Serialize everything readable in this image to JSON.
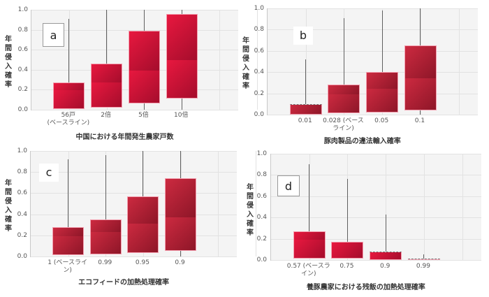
{
  "panels": [
    {
      "id": "a",
      "tag": "a",
      "ylabel": "年間侵入確率",
      "xtitle": "中国における年間発生農家戸数",
      "yticks": [
        "1.0",
        "0.8",
        "0.6",
        "0.4",
        "0.2",
        "0.0"
      ],
      "xticks": [
        "56戸\n(ベースライン)",
        "2倍",
        "5倍",
        "10倍"
      ]
    },
    {
      "id": "b",
      "tag": "b",
      "ylabel": "年間侵入確率",
      "xtitle": "豚肉製品の違法輸入確率",
      "yticks": [
        "1.0",
        "0.8",
        "0.6",
        "0.4",
        "0.2",
        "0.0"
      ],
      "xticks": [
        "0.01",
        "0.028 (ベース\nライン)",
        "0.05",
        "0.1"
      ]
    },
    {
      "id": "c",
      "tag": "c",
      "ylabel": "年間侵入確率",
      "xtitle": "エコフィードの加熱処理確率",
      "yticks": [
        "1.0",
        "0.8",
        "0.6",
        "0.4",
        "0.2",
        "0.0"
      ],
      "xticks": [
        "1 (ベースライ\nン)",
        "0.99",
        "0.95",
        "0.9"
      ]
    },
    {
      "id": "d",
      "tag": "d",
      "ylabel": "年間侵入確率",
      "xtitle": "養豚農家における残飯の加熱処理確率",
      "yticks": [
        "1.0",
        "0.8",
        "0.6",
        "0.4",
        "0.2",
        "0.0"
      ],
      "xticks": [
        "0.57 (ベースラ\nイン)",
        "0.75",
        "0.9",
        "0.99"
      ]
    }
  ],
  "chart_data": [
    {
      "type": "box",
      "panel": "a",
      "title": "",
      "xlabel": "中国における年間発生農家戸数",
      "ylabel": "年間侵入確率",
      "ylim": [
        0,
        1.0
      ],
      "grid": true,
      "categories": [
        "56戸 (ベースライン)",
        "2倍",
        "5倍",
        "10倍"
      ],
      "q1": [
        0.01,
        0.02,
        0.06,
        0.11
      ],
      "median": [
        0.2,
        0.28,
        0.4,
        0.5
      ],
      "q3": [
        0.27,
        0.46,
        0.79,
        0.96
      ],
      "whisker_low": [
        0.0,
        0.0,
        0.0,
        0.0
      ],
      "whisker_high": [
        0.91,
        1.0,
        1.0,
        1.0
      ]
    },
    {
      "type": "box",
      "panel": "b",
      "title": "",
      "xlabel": "豚肉製品の違法輸入確率",
      "ylabel": "年間侵入確率",
      "ylim": [
        0,
        1.0
      ],
      "grid": true,
      "categories": [
        "0.01",
        "0.028 (ベースライン)",
        "0.05",
        "0.1"
      ],
      "q1": [
        0.0,
        0.01,
        0.02,
        0.04
      ],
      "median": [
        0.1,
        0.2,
        0.25,
        0.35
      ],
      "q3": [
        0.1,
        0.28,
        0.4,
        0.65
      ],
      "whisker_low": [
        0.0,
        0.0,
        0.0,
        0.0
      ],
      "whisker_high": [
        0.52,
        0.91,
        0.98,
        1.0
      ]
    },
    {
      "type": "box",
      "panel": "c",
      "title": "",
      "xlabel": "エコフィードの加熱処理確率",
      "ylabel": "年間侵入確率",
      "ylim": [
        0,
        1.0
      ],
      "grid": true,
      "categories": [
        "1 (ベースライン)",
        "0.99",
        "0.95",
        "0.9"
      ],
      "q1": [
        0.01,
        0.02,
        0.03,
        0.05
      ],
      "median": [
        0.2,
        0.24,
        0.32,
        0.38
      ],
      "q3": [
        0.28,
        0.35,
        0.57,
        0.74
      ],
      "whisker_low": [
        0.0,
        0.0,
        0.0,
        0.0
      ],
      "whisker_high": [
        0.92,
        0.96,
        1.0,
        1.0
      ]
    },
    {
      "type": "box",
      "panel": "d",
      "title": "",
      "xlabel": "養豚農家における残飯の加熱処理確率",
      "ylabel": "年間侵入確率",
      "ylim": [
        0,
        1.0
      ],
      "grid": true,
      "categories": [
        "0.57 (ベースライン)",
        "0.75",
        "0.9",
        "0.99"
      ],
      "q1": [
        0.01,
        0.01,
        0.0,
        0.0
      ],
      "median": [
        0.2,
        0.17,
        0.08,
        0.01
      ],
      "q3": [
        0.27,
        0.17,
        0.08,
        0.01
      ],
      "whisker_low": [
        0.0,
        0.0,
        0.0,
        0.0
      ],
      "whisker_high": [
        0.9,
        0.76,
        0.43,
        0.05
      ]
    }
  ],
  "style": {
    "panel_colors": {
      "a": [
        "#e8183f",
        "#a50d2c"
      ],
      "b": [
        "#cc2a40",
        "#8e1628"
      ],
      "c": [
        "#cc2a40",
        "#8e1628"
      ],
      "d": [
        "#e8183f",
        "#a50d2c"
      ]
    }
  }
}
